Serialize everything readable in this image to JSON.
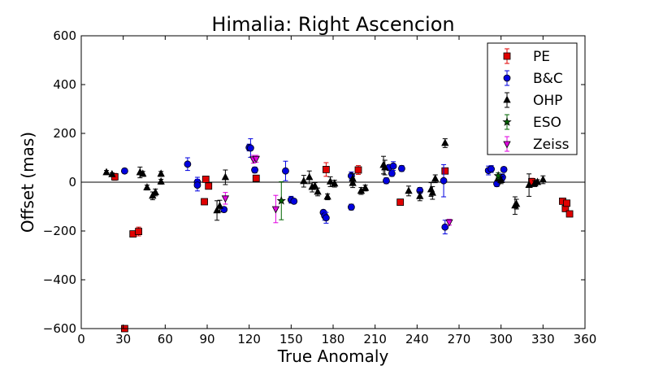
{
  "chart_data": {
    "type": "scatter",
    "title": "Himalia: Right Ascencion",
    "xlabel": "True Anomaly",
    "ylabel": "Offset (mas)",
    "xlim": [
      0,
      360
    ],
    "ylim": [
      -600,
      600
    ],
    "xticks": [
      0,
      30,
      60,
      90,
      120,
      150,
      180,
      210,
      240,
      270,
      300,
      330,
      360
    ],
    "yticks": [
      -600,
      -400,
      -200,
      0,
      200,
      400,
      600
    ],
    "zero_line": true,
    "grid": false,
    "legend_position": "top-right",
    "series": [
      {
        "name": "PE",
        "marker": "square",
        "color": "#e00000",
        "points": [
          {
            "x": 24,
            "y": 22,
            "err": 14
          },
          {
            "x": 31,
            "y": -600,
            "err": 0
          },
          {
            "x": 37,
            "y": -212,
            "err": 8
          },
          {
            "x": 41,
            "y": -202,
            "err": 18
          },
          {
            "x": 88,
            "y": -80,
            "err": 6
          },
          {
            "x": 89,
            "y": 12,
            "err": 8
          },
          {
            "x": 91,
            "y": -16,
            "err": 8
          },
          {
            "x": 125,
            "y": 16,
            "err": 8
          },
          {
            "x": 175,
            "y": 52,
            "err": 28
          },
          {
            "x": 198,
            "y": 50,
            "err": 18
          },
          {
            "x": 228,
            "y": -82,
            "err": 8
          },
          {
            "x": 260,
            "y": 46,
            "err": 12
          },
          {
            "x": 322,
            "y": 2,
            "err": 14
          },
          {
            "x": 344,
            "y": -78,
            "err": 6
          },
          {
            "x": 346,
            "y": -108,
            "err": 6
          },
          {
            "x": 347,
            "y": -86,
            "err": 6
          },
          {
            "x": 349,
            "y": -130,
            "err": 6
          }
        ]
      },
      {
        "name": "B&C",
        "marker": "circle",
        "color": "#0000e0",
        "points": [
          {
            "x": 31,
            "y": 46,
            "err": 10
          },
          {
            "x": 76,
            "y": 74,
            "err": 26
          },
          {
            "x": 83,
            "y": 0,
            "err": 20
          },
          {
            "x": 83,
            "y": -12,
            "err": 24
          },
          {
            "x": 102,
            "y": -112,
            "err": 10
          },
          {
            "x": 120,
            "y": 142,
            "err": 14
          },
          {
            "x": 121,
            "y": 140,
            "err": 38
          },
          {
            "x": 124,
            "y": 50,
            "err": 12
          },
          {
            "x": 146,
            "y": 46,
            "err": 40
          },
          {
            "x": 150,
            "y": -72,
            "err": 14
          },
          {
            "x": 152,
            "y": -78,
            "err": 10
          },
          {
            "x": 173,
            "y": -124,
            "err": 10
          },
          {
            "x": 174,
            "y": -138,
            "err": 18
          },
          {
            "x": 175,
            "y": -146,
            "err": 22
          },
          {
            "x": 193,
            "y": 26,
            "err": 16
          },
          {
            "x": 193,
            "y": -102,
            "err": 12
          },
          {
            "x": 218,
            "y": 6,
            "err": 12
          },
          {
            "x": 220,
            "y": 60,
            "err": 12
          },
          {
            "x": 222,
            "y": 36,
            "err": 12
          },
          {
            "x": 223,
            "y": 66,
            "err": 18
          },
          {
            "x": 229,
            "y": 56,
            "err": 12
          },
          {
            "x": 242,
            "y": -34,
            "err": 12
          },
          {
            "x": 259,
            "y": 6,
            "err": 66
          },
          {
            "x": 260,
            "y": -184,
            "err": 28
          },
          {
            "x": 291,
            "y": 48,
            "err": 18
          },
          {
            "x": 293,
            "y": 54,
            "err": 14
          },
          {
            "x": 297,
            "y": -6,
            "err": 12
          },
          {
            "x": 301,
            "y": 20,
            "err": 14
          },
          {
            "x": 302,
            "y": 52,
            "err": 10
          }
        ]
      },
      {
        "name": "OHP",
        "marker": "triangle-up",
        "color": "#000000",
        "points": [
          {
            "x": 18,
            "y": 40,
            "err": 8
          },
          {
            "x": 22,
            "y": 32,
            "err": 6
          },
          {
            "x": 42,
            "y": 40,
            "err": 22
          },
          {
            "x": 44,
            "y": 34,
            "err": 10
          },
          {
            "x": 47,
            "y": -22,
            "err": 10
          },
          {
            "x": 51,
            "y": -56,
            "err": 16
          },
          {
            "x": 53,
            "y": -42,
            "err": 14
          },
          {
            "x": 57,
            "y": 34,
            "err": 10
          },
          {
            "x": 57,
            "y": 2,
            "err": 10
          },
          {
            "x": 97,
            "y": -116,
            "err": 40
          },
          {
            "x": 99,
            "y": -98,
            "err": 24
          },
          {
            "x": 103,
            "y": 20,
            "err": 30
          },
          {
            "x": 159,
            "y": 4,
            "err": 24
          },
          {
            "x": 163,
            "y": 20,
            "err": 26
          },
          {
            "x": 165,
            "y": -20,
            "err": 20
          },
          {
            "x": 167,
            "y": -16,
            "err": 14
          },
          {
            "x": 169,
            "y": -40,
            "err": 16
          },
          {
            "x": 176,
            "y": -60,
            "err": 12
          },
          {
            "x": 178,
            "y": 2,
            "err": 20
          },
          {
            "x": 181,
            "y": -6,
            "err": 14
          },
          {
            "x": 194,
            "y": 14,
            "err": 20
          },
          {
            "x": 194,
            "y": -4,
            "err": 18
          },
          {
            "x": 200,
            "y": -36,
            "err": 14
          },
          {
            "x": 203,
            "y": -24,
            "err": 12
          },
          {
            "x": 216,
            "y": 70,
            "err": 36
          },
          {
            "x": 217,
            "y": 60,
            "err": 30
          },
          {
            "x": 234,
            "y": -36,
            "err": 20
          },
          {
            "x": 242,
            "y": -58,
            "err": 18
          },
          {
            "x": 250,
            "y": -30,
            "err": 28
          },
          {
            "x": 251,
            "y": -44,
            "err": 26
          },
          {
            "x": 253,
            "y": 14,
            "err": 16
          },
          {
            "x": 260,
            "y": 160,
            "err": 18
          },
          {
            "x": 298,
            "y": 16,
            "err": 12
          },
          {
            "x": 300,
            "y": 8,
            "err": 14
          },
          {
            "x": 310,
            "y": -96,
            "err": 36
          },
          {
            "x": 311,
            "y": -90,
            "err": 20
          },
          {
            "x": 320,
            "y": -12,
            "err": 46
          },
          {
            "x": 324,
            "y": -6,
            "err": 12
          },
          {
            "x": 326,
            "y": 0,
            "err": 10
          },
          {
            "x": 330,
            "y": 10,
            "err": 16
          }
        ]
      },
      {
        "name": "ESO",
        "marker": "star",
        "color": "#006400",
        "points": [
          {
            "x": 143,
            "y": -76,
            "err": 78
          },
          {
            "x": 298,
            "y": 26,
            "err": 12
          }
        ]
      },
      {
        "name": "Zeiss",
        "marker": "triangle-down",
        "color": "#e000e0",
        "points": [
          {
            "x": 103,
            "y": -66,
            "err": 24
          },
          {
            "x": 123,
            "y": 94,
            "err": 16
          },
          {
            "x": 125,
            "y": 96,
            "err": 14
          },
          {
            "x": 139,
            "y": -110,
            "err": 56
          },
          {
            "x": 263,
            "y": -164,
            "err": 12
          }
        ]
      }
    ]
  }
}
